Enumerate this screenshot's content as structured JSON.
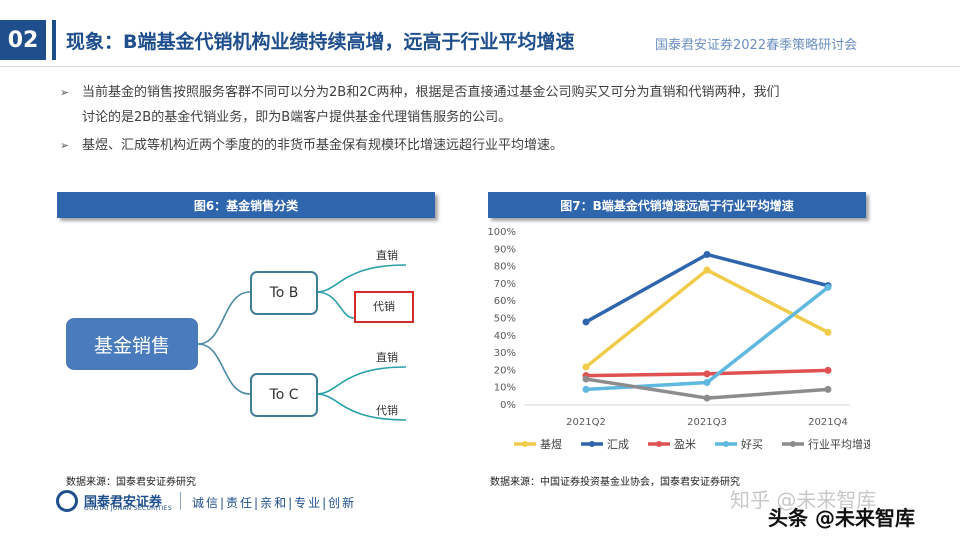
{
  "header": {
    "section_number": "02",
    "title": "现象：B端基金代销机构业绩持续高增，远高于行业平均增速",
    "conference": "国泰君安证券2022春季策略研讨会"
  },
  "bullets": [
    {
      "marker": "➢",
      "text": "当前基金的销售按照服务客群不同可以分为2B和2C两种，根据是否直接通过基金公司购买又可分为直销和代销两种，我们"
    },
    {
      "marker": "",
      "text": "讨论的是2B的基金代销业务，即为B端客户提供基金代理销售服务的公司。"
    },
    {
      "marker": "➢",
      "text": "基煜、汇成等机构近两个季度的的非货币基金保有规模环比增速远超行业平均增速。"
    }
  ],
  "figure6": {
    "title": "图6：基金销售分类",
    "root": "基金销售",
    "branches": [
      {
        "label": "To B",
        "leaves": [
          "直销",
          "代销"
        ]
      },
      {
        "label": "To C",
        "leaves": [
          "直销",
          "代销"
        ]
      }
    ],
    "highlight_color": "#d42a2a",
    "source": "数据来源：国泰君安证券研究"
  },
  "figure7": {
    "title": "图7：B端基金代销增速远高于行业平均增速",
    "source": "数据来源：中国证券投资基金业协会，国泰君安证券研究"
  },
  "chart_data": {
    "type": "line",
    "title": "图7：B端基金代销增速远高于行业平均增速",
    "xlabel": "",
    "ylabel": "",
    "categories": [
      "2021Q2",
      "2021Q3",
      "2021Q4"
    ],
    "ylim": [
      0,
      100
    ],
    "y_ticks": [
      "0%",
      "10%",
      "20%",
      "30%",
      "40%",
      "50%",
      "60%",
      "70%",
      "80%",
      "90%",
      "100%"
    ],
    "grid": false,
    "legend_position": "bottom",
    "series": [
      {
        "name": "基煜",
        "color": "#f0cc4a",
        "values": [
          22,
          78,
          42
        ]
      },
      {
        "name": "汇成",
        "color": "#2f65ad",
        "values": [
          48,
          87,
          69
        ]
      },
      {
        "name": "盈米",
        "color": "#e05252",
        "values": [
          17,
          18,
          20
        ]
      },
      {
        "name": "好买",
        "color": "#5fb8e0",
        "values": [
          9,
          13,
          68
        ]
      },
      {
        "name": "行业平均增速",
        "color": "#8c8c8c",
        "values": [
          15,
          4,
          9
        ]
      }
    ]
  },
  "footer": {
    "logo_cn": "国泰君安证券",
    "logo_en": "GUOTAI JUNAN SECURITIES",
    "slogan": "诚信|责任|亲和|专业|创新",
    "watermark_1": "知乎 @未来智库",
    "watermark_2": "头条 @未来智库"
  }
}
